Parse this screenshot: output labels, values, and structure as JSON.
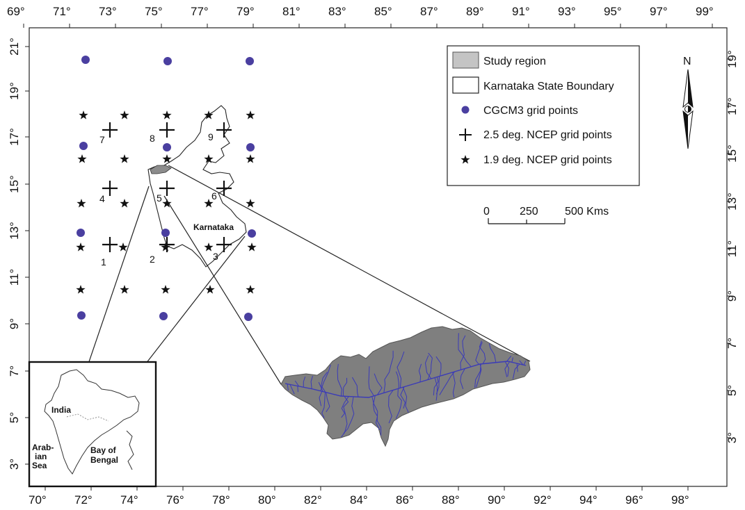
{
  "axes": {
    "top_labels": [
      "69°",
      "71°",
      "73°",
      "75°",
      "77°",
      "79°",
      "81°",
      "83°",
      "85°",
      "87°",
      "89°",
      "91°",
      "93°",
      "95°",
      "97°",
      "99°"
    ],
    "bottom_labels": [
      "70°",
      "72°",
      "74°",
      "76°",
      "78°",
      "80°",
      "82°",
      "84°",
      "86°",
      "88°",
      "90°",
      "92°",
      "94°",
      "96°",
      "98°"
    ],
    "left_labels": [
      "21°",
      "19°",
      "17°",
      "15°",
      "13°",
      "11°",
      "9°",
      "7°",
      "5°",
      "3°"
    ],
    "right_labels": [
      "19°",
      "17°",
      "15°",
      "13°",
      "11°",
      "9°",
      "7°",
      "5°",
      "3°"
    ]
  },
  "legend": {
    "items": [
      {
        "symbol": "filled-box",
        "label": "Study region"
      },
      {
        "symbol": "empty-box",
        "label": "Karnataka State Boundary"
      },
      {
        "symbol": "circle",
        "label": "CGCM3 grid points"
      },
      {
        "symbol": "plus",
        "label": "2.5 deg. NCEP grid points"
      },
      {
        "symbol": "star",
        "label": "1.9 deg. NCEP grid points"
      }
    ]
  },
  "north_arrow": {
    "label": "N"
  },
  "scale_bar": {
    "labels": [
      "0",
      "250",
      "500 Kms"
    ]
  },
  "map_labels": {
    "karnataka": "Karnataka",
    "india": "India",
    "arab_1": "Arab-",
    "arab_2": "ian",
    "arab_3": "Sea",
    "bay_1": "Bay of",
    "bay_2": "Bengal"
  },
  "grid_numbers": [
    "1",
    "2",
    "3",
    "4",
    "5",
    "6",
    "7",
    "8",
    "9"
  ],
  "colors": {
    "cgcm3": "#4a3fa0",
    "study_region": "#7a7a7a",
    "rivers": "#3a3ab8",
    "legend_box_fill": "#c4c4c4"
  }
}
